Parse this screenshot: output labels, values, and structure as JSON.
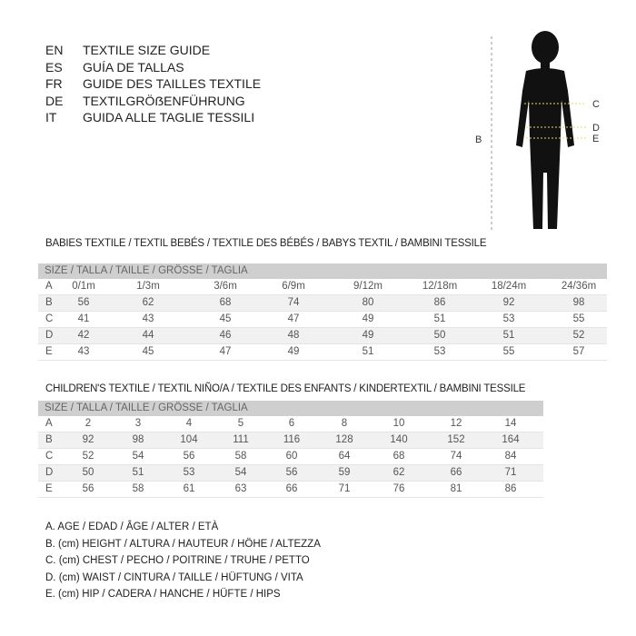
{
  "languages": [
    {
      "code": "EN",
      "title": "TEXTILE SIZE GUIDE"
    },
    {
      "code": "ES",
      "title": "GUÍA DE TALLAS"
    },
    {
      "code": "FR",
      "title": "GUIDE DES TAILLES TEXTILE"
    },
    {
      "code": "DE",
      "title": "TEXTILGRÖẞENFÜHRUNG"
    },
    {
      "code": "IT",
      "title": "GUIDA ALLE TAGLIE TESSILI"
    }
  ],
  "figure": {
    "labels": {
      "b": "B",
      "c": "C",
      "d": "D",
      "e": "E"
    }
  },
  "babies": {
    "title": "BABIES TEXTILE / TEXTIL BEBÉS / TEXTILE DES BÉBÉS / BABYS TEXTIL  / BAMBINI TESSILE",
    "header": "SIZE / TALLA / TAILLE / GRÖSSE / TAGLIA",
    "rows": [
      {
        "label": "A",
        "values": [
          "0/1m",
          "1/3m",
          "3/6m",
          "6/9m",
          "9/12m",
          "12/18m",
          "18/24m",
          "24/36m"
        ]
      },
      {
        "label": "B",
        "values": [
          "56",
          "62",
          "68",
          "74",
          "80",
          "86",
          "92",
          "98"
        ]
      },
      {
        "label": "C",
        "values": [
          "41",
          "43",
          "45",
          "47",
          "49",
          "51",
          "53",
          "55"
        ]
      },
      {
        "label": "D",
        "values": [
          "42",
          "44",
          "46",
          "48",
          "49",
          "50",
          "51",
          "52"
        ]
      },
      {
        "label": "E",
        "values": [
          "43",
          "45",
          "47",
          "49",
          "51",
          "53",
          "55",
          "57"
        ]
      }
    ]
  },
  "children": {
    "title": "CHILDREN'S TEXTILE / TEXTIL NIÑO/A / TEXTILE DES ENFANTS / KINDERTEXTIL / BAMBINI TESSILE",
    "header": "SIZE / TALLA / TAILLE / GRÖSSE / TAGLIA",
    "rows": [
      {
        "label": "A",
        "values": [
          "2",
          "3",
          "4",
          "5",
          "6",
          "8",
          "10",
          "12",
          "14"
        ]
      },
      {
        "label": "B",
        "values": [
          "92",
          "98",
          "104",
          "111",
          "116",
          "128",
          "140",
          "152",
          "164"
        ]
      },
      {
        "label": "C",
        "values": [
          "52",
          "54",
          "56",
          "58",
          "60",
          "64",
          "68",
          "74",
          "84"
        ]
      },
      {
        "label": "D",
        "values": [
          "50",
          "51",
          "53",
          "54",
          "56",
          "59",
          "62",
          "66",
          "71"
        ]
      },
      {
        "label": "E",
        "values": [
          "56",
          "58",
          "61",
          "63",
          "66",
          "71",
          "76",
          "81",
          "86"
        ]
      }
    ]
  },
  "legend": [
    "A. AGE / EDAD / ÂGE / ALTER / ETÀ",
    "B. (cm) HEIGHT / ALTURA / HAUTEUR / HÖHE / ALTEZZA",
    "C. (cm) CHEST / PECHO / POITRINE / TRUHE / PETTO",
    "D. (cm) WAIST / CINTURA / TAILLE / HÜFTUNG / VITA",
    "E. (cm) HIP / CADERA / HANCHE / HÜFTE / HIPS"
  ]
}
